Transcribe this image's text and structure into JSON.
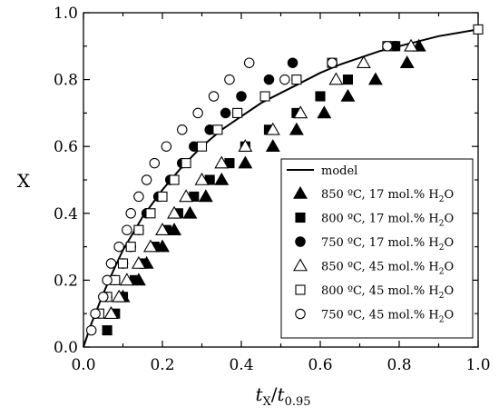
{
  "chart_data": {
    "type": "scatter",
    "xlabel": {
      "main": "t",
      "main_sub": "X",
      "slash": "/",
      "den": "t",
      "den_sub": "0.95"
    },
    "ylabel": "X",
    "xlim": [
      0.0,
      1.0
    ],
    "ylim": [
      0.0,
      1.0
    ],
    "xticks": [
      "0.0",
      "0.2",
      "0.4",
      "0.6",
      "0.8",
      "1.0"
    ],
    "yticks": [
      "0.0",
      "0.2",
      "0.4",
      "0.6",
      "0.8",
      "1.0"
    ],
    "grid": false,
    "legend_position": "lower-right",
    "model": {
      "name": "model",
      "x": [
        0.0,
        0.02,
        0.05,
        0.08,
        0.1,
        0.15,
        0.2,
        0.25,
        0.3,
        0.35,
        0.4,
        0.45,
        0.5,
        0.55,
        0.6,
        0.65,
        0.7,
        0.75,
        0.8,
        0.85,
        0.9,
        0.95,
        1.0
      ],
      "y": [
        0.0,
        0.07,
        0.16,
        0.24,
        0.29,
        0.39,
        0.47,
        0.54,
        0.6,
        0.65,
        0.69,
        0.73,
        0.76,
        0.79,
        0.82,
        0.845,
        0.865,
        0.885,
        0.9,
        0.915,
        0.93,
        0.94,
        0.95
      ]
    },
    "series": [
      {
        "name": {
          "pre": "850 ºC, 17 mol.% H",
          "sub": "2",
          "post": "O"
        },
        "marker": "triangle-filled",
        "x": [
          0.07,
          0.1,
          0.14,
          0.16,
          0.2,
          0.23,
          0.27,
          0.31,
          0.35,
          0.41,
          0.48,
          0.54,
          0.61,
          0.67,
          0.74,
          0.82,
          0.85
        ],
        "y": [
          0.1,
          0.15,
          0.2,
          0.25,
          0.3,
          0.35,
          0.4,
          0.45,
          0.5,
          0.55,
          0.6,
          0.65,
          0.7,
          0.75,
          0.8,
          0.85,
          0.9
        ]
      },
      {
        "name": {
          "pre": "800 ºC, 17 mol.% H",
          "sub": "2",
          "post": "O"
        },
        "marker": "square-filled",
        "x": [
          0.06,
          0.08,
          0.1,
          0.13,
          0.15,
          0.18,
          0.21,
          0.24,
          0.28,
          0.32,
          0.37,
          0.41,
          0.47,
          0.54,
          0.6,
          0.67,
          0.79
        ],
        "y": [
          0.05,
          0.1,
          0.15,
          0.2,
          0.25,
          0.3,
          0.35,
          0.4,
          0.45,
          0.5,
          0.55,
          0.6,
          0.65,
          0.7,
          0.75,
          0.8,
          0.9
        ]
      },
      {
        "name": {
          "pre": "750 ºC, 17 mol.% H",
          "sub": "2",
          "post": "O"
        },
        "marker": "circle-filled",
        "x": [
          0.06,
          0.08,
          0.1,
          0.12,
          0.14,
          0.16,
          0.19,
          0.22,
          0.25,
          0.28,
          0.32,
          0.36,
          0.4,
          0.47,
          0.53,
          0.63,
          0.79
        ],
        "y": [
          0.15,
          0.2,
          0.25,
          0.3,
          0.35,
          0.4,
          0.45,
          0.5,
          0.55,
          0.6,
          0.65,
          0.7,
          0.75,
          0.8,
          0.85,
          0.85,
          0.9
        ]
      },
      {
        "name": {
          "pre": "850 ºC, 45 mol.% H",
          "sub": "2",
          "post": "O"
        },
        "marker": "triangle-open",
        "x": [
          0.07,
          0.09,
          0.11,
          0.14,
          0.17,
          0.2,
          0.23,
          0.26,
          0.3,
          0.35,
          0.41,
          0.48,
          0.55,
          0.64,
          0.71,
          0.83
        ],
        "y": [
          0.1,
          0.15,
          0.2,
          0.25,
          0.3,
          0.35,
          0.4,
          0.45,
          0.5,
          0.55,
          0.6,
          0.65,
          0.7,
          0.8,
          0.85,
          0.9
        ]
      },
      {
        "name": {
          "pre": "800 ºC, 45 mol.% H",
          "sub": "2",
          "post": "O"
        },
        "marker": "square-open",
        "x": [
          0.04,
          0.06,
          0.08,
          0.1,
          0.12,
          0.14,
          0.17,
          0.2,
          0.23,
          0.26,
          0.3,
          0.34,
          0.39,
          0.46,
          0.54,
          0.63,
          0.77,
          1.0
        ],
        "y": [
          0.1,
          0.15,
          0.2,
          0.25,
          0.3,
          0.35,
          0.4,
          0.45,
          0.5,
          0.55,
          0.6,
          0.65,
          0.7,
          0.75,
          0.8,
          0.85,
          0.9,
          0.95
        ]
      },
      {
        "name": {
          "pre": "750 ºC, 45 mol.% H",
          "sub": "2",
          "post": "O"
        },
        "marker": "circle-open",
        "x": [
          0.02,
          0.03,
          0.05,
          0.06,
          0.07,
          0.09,
          0.11,
          0.12,
          0.14,
          0.16,
          0.18,
          0.21,
          0.25,
          0.29,
          0.33,
          0.37,
          0.42,
          0.51,
          0.63,
          0.77
        ],
        "y": [
          0.05,
          0.1,
          0.15,
          0.2,
          0.25,
          0.3,
          0.35,
          0.4,
          0.45,
          0.5,
          0.55,
          0.6,
          0.65,
          0.7,
          0.75,
          0.8,
          0.85,
          0.8,
          0.85,
          0.9
        ]
      }
    ]
  }
}
